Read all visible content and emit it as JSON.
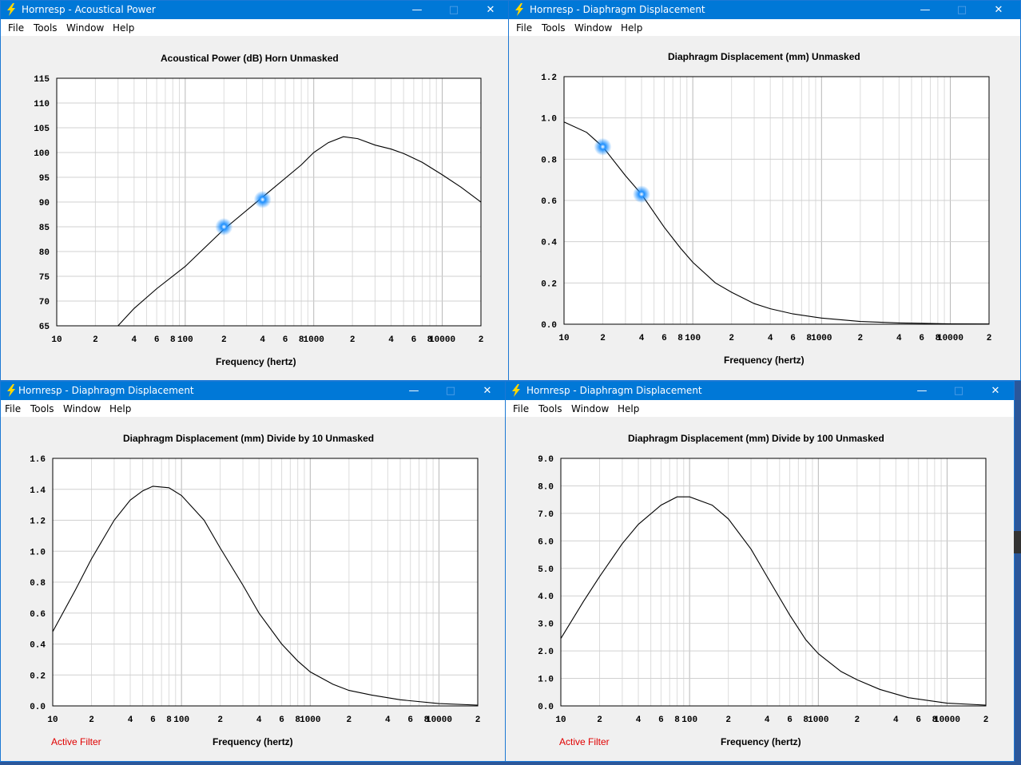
{
  "windows": [
    {
      "title": "Hornresp - Acoustical Power",
      "menu": [
        "File",
        "Tools",
        "Window",
        "Help"
      ],
      "chart_title": "Acoustical Power (dB)   Horn   Unmasked",
      "xlabel": "Frequency (hertz)",
      "active_filter": ""
    },
    {
      "title": "Hornresp - Diaphragm Displacement",
      "menu": [
        "File",
        "Tools",
        "Window",
        "Help"
      ],
      "chart_title": "Diaphragm Displacement (mm)   Unmasked",
      "xlabel": "Frequency (hertz)",
      "active_filter": ""
    },
    {
      "title": "Hornresp - Diaphragm Displacement",
      "menu": [
        "File",
        "Tools",
        "Window",
        "Help"
      ],
      "chart_title": "Diaphragm Displacement (mm)   Divide by 10   Unmasked",
      "xlabel": "Frequency (hertz)",
      "active_filter": "Active Filter"
    },
    {
      "title": "Hornresp - Diaphragm Displacement",
      "menu": [
        "File",
        "Tools",
        "Window",
        "Help"
      ],
      "chart_title": "Diaphragm Displacement (mm)   Divide by 100   Unmasked",
      "xlabel": "Frequency (hertz)",
      "active_filter": "Active Filter"
    }
  ],
  "colors": {
    "titlebar": "#0078d7",
    "marker": "#1e90ff",
    "active_filter": "#e00000"
  },
  "icons": {
    "app": "lightning-bolt-icon",
    "minimize": "minimize-icon",
    "maximize": "maximize-icon",
    "close": "close-icon"
  },
  "chart_data": [
    {
      "type": "line",
      "title": "Acoustical Power (dB)   Horn   Unmasked",
      "xlabel": "Frequency (hertz)",
      "ylabel": "",
      "xscale": "log",
      "xlim": [
        10,
        20000
      ],
      "ylim": [
        65,
        115
      ],
      "yticks": [
        "115",
        "110",
        "105",
        "100",
        "95",
        "90",
        "85",
        "80",
        "75",
        "70",
        "65"
      ],
      "xticks": [
        "10",
        "2",
        "4",
        "6",
        "8",
        "100",
        "2",
        "4",
        "6",
        "8",
        "1000",
        "2",
        "4",
        "6",
        "8",
        "10000",
        "2"
      ],
      "grid": true,
      "series": [
        {
          "x": [
            10,
            30,
            40,
            60,
            100,
            200,
            400,
            800,
            1000,
            1300,
            1700,
            2200,
            3000,
            4000,
            5000,
            7000,
            10000,
            14000,
            20000
          ],
          "y": [
            50,
            65,
            68.5,
            72.5,
            77,
            84.5,
            91,
            97.5,
            100,
            102,
            103.2,
            102.8,
            101.5,
            100.7,
            99.8,
            98,
            95.5,
            93,
            90
          ]
        }
      ],
      "markers": [
        {
          "x": 200,
          "y": 85
        },
        {
          "x": 400,
          "y": 90.5
        }
      ]
    },
    {
      "type": "line",
      "title": "Diaphragm Displacement (mm)   Unmasked",
      "xlabel": "Frequency (hertz)",
      "ylabel": "",
      "xscale": "log",
      "xlim": [
        10,
        20000
      ],
      "ylim": [
        0,
        1.2
      ],
      "yticks": [
        "1.2",
        "1.0",
        "0.8",
        "0.6",
        "0.4",
        "0.2",
        "0.0"
      ],
      "xticks": [
        "10",
        "2",
        "4",
        "6",
        "8",
        "100",
        "2",
        "4",
        "6",
        "8",
        "1000",
        "2",
        "4",
        "6",
        "8",
        "10000",
        "2"
      ],
      "grid": true,
      "series": [
        {
          "x": [
            10,
            15,
            20,
            30,
            40,
            60,
            80,
            100,
            150,
            200,
            300,
            400,
            600,
            1000,
            2000,
            4000,
            10000,
            20000
          ],
          "y": [
            0.98,
            0.93,
            0.86,
            0.72,
            0.63,
            0.47,
            0.37,
            0.3,
            0.2,
            0.155,
            0.1,
            0.075,
            0.05,
            0.03,
            0.013,
            0.006,
            0.002,
            0.001
          ]
        }
      ],
      "markers": [
        {
          "x": 20,
          "y": 0.86
        },
        {
          "x": 40,
          "y": 0.63
        }
      ]
    },
    {
      "type": "line",
      "title": "Diaphragm Displacement (mm)   Divide by 10   Unmasked",
      "xlabel": "Frequency (hertz)",
      "ylabel": "",
      "xscale": "log",
      "xlim": [
        10,
        20000
      ],
      "ylim": [
        0,
        1.6
      ],
      "yticks": [
        "1.6",
        "1.4",
        "1.2",
        "1.0",
        "0.8",
        "0.6",
        "0.4",
        "0.2",
        "0.0"
      ],
      "xticks": [
        "10",
        "2",
        "4",
        "6",
        "8",
        "100",
        "2",
        "4",
        "6",
        "8",
        "1000",
        "2",
        "4",
        "6",
        "8",
        "10000",
        "2"
      ],
      "grid": true,
      "series": [
        {
          "x": [
            10,
            15,
            20,
            30,
            40,
            50,
            60,
            80,
            100,
            150,
            200,
            300,
            400,
            600,
            800,
            1000,
            1500,
            2000,
            3000,
            5000,
            10000,
            20000
          ],
          "y": [
            0.48,
            0.75,
            0.95,
            1.2,
            1.33,
            1.39,
            1.42,
            1.41,
            1.36,
            1.2,
            1.02,
            0.78,
            0.6,
            0.4,
            0.29,
            0.22,
            0.14,
            0.1,
            0.07,
            0.04,
            0.015,
            0.005
          ]
        }
      ],
      "markers": []
    },
    {
      "type": "line",
      "title": "Diaphragm Displacement (mm)   Divide by 100   Unmasked",
      "xlabel": "Frequency (hertz)",
      "ylabel": "",
      "xscale": "log",
      "xlim": [
        10,
        20000
      ],
      "ylim": [
        0,
        9
      ],
      "yticks": [
        "9.0",
        "8.0",
        "7.0",
        "6.0",
        "5.0",
        "4.0",
        "3.0",
        "2.0",
        "1.0",
        "0.0"
      ],
      "xticks": [
        "10",
        "2",
        "4",
        "6",
        "8",
        "100",
        "2",
        "4",
        "6",
        "8",
        "1000",
        "2",
        "4",
        "6",
        "8",
        "10000",
        "2"
      ],
      "grid": true,
      "series": [
        {
          "x": [
            10,
            15,
            20,
            30,
            40,
            60,
            80,
            100,
            150,
            200,
            300,
            400,
            600,
            800,
            1000,
            1500,
            2000,
            3000,
            5000,
            10000,
            20000
          ],
          "y": [
            2.45,
            3.8,
            4.7,
            5.9,
            6.6,
            7.3,
            7.6,
            7.6,
            7.3,
            6.8,
            5.7,
            4.7,
            3.3,
            2.4,
            1.9,
            1.25,
            0.95,
            0.6,
            0.3,
            0.1,
            0.03
          ]
        }
      ],
      "markers": []
    }
  ]
}
